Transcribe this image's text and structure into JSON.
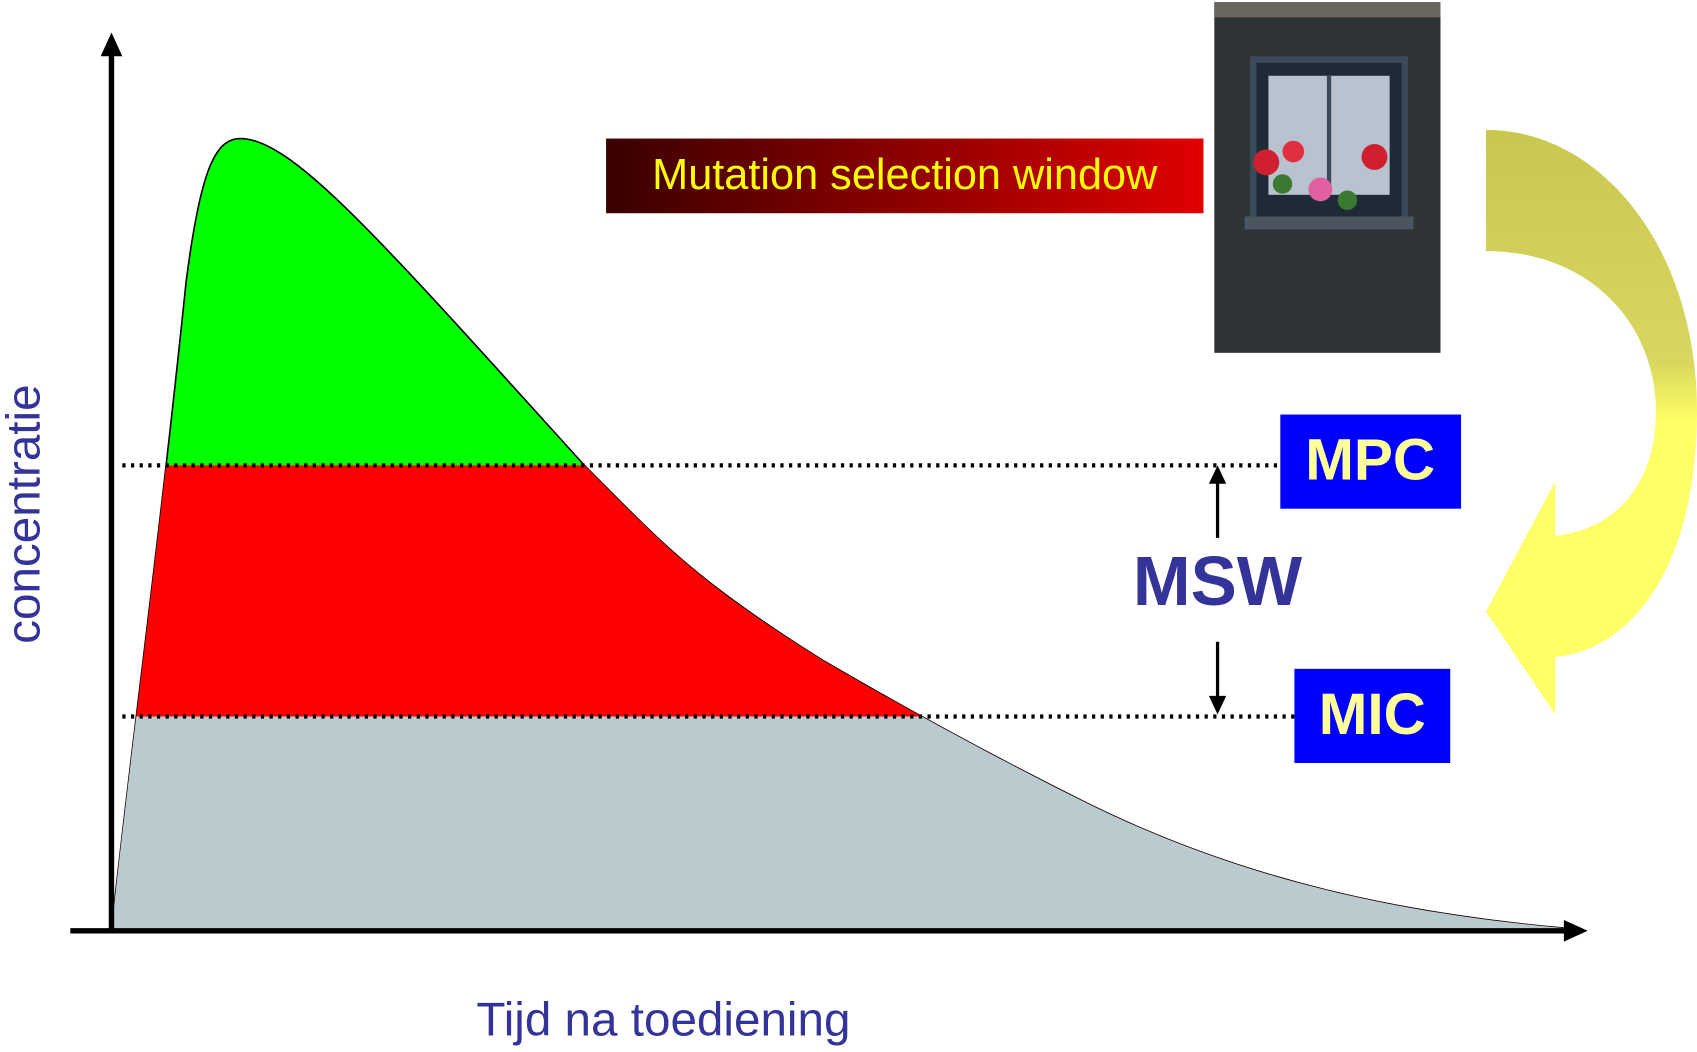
{
  "labels": {
    "window": "Mutation selection window",
    "mpc": "MPC",
    "msw": "MSW",
    "mic": "MIC",
    "y_axis": "concentratie",
    "x_axis": "Tijd na toediening"
  }
}
